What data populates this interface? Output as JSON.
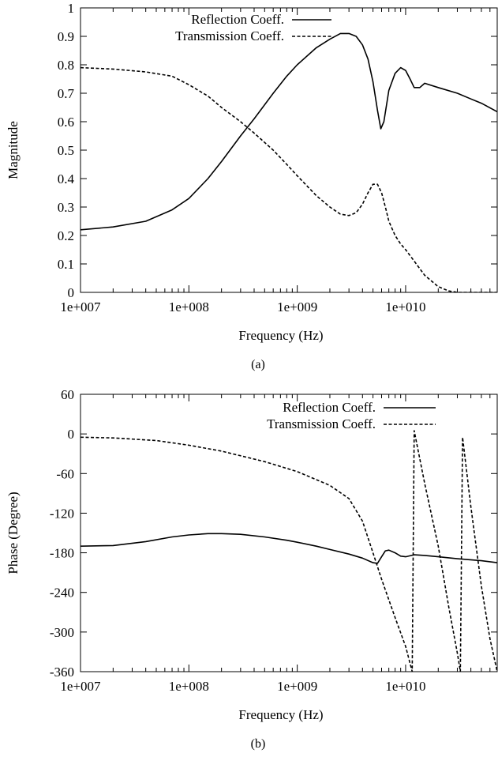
{
  "chart_data": [
    {
      "type": "line",
      "caption": "(a)",
      "xlabel": "Frequency (Hz)",
      "ylabel": "Magnitude",
      "xscale": "log",
      "xlim": [
        10000000.0,
        70000000000.0
      ],
      "ylim": [
        0,
        1
      ],
      "x_ticks": [
        10000000.0,
        100000000.0,
        1000000000.0,
        10000000000.0
      ],
      "x_tick_labels": [
        "1e+007",
        "1e+008",
        "1e+009",
        "1e+010"
      ],
      "y_ticks": [
        0,
        0.1,
        0.2,
        0.3,
        0.4,
        0.5,
        0.6,
        0.7,
        0.8,
        0.9,
        1
      ],
      "y_tick_labels": [
        "0",
        "0.1",
        "0.2",
        "0.3",
        "0.4",
        "0.5",
        "0.6",
        "0.7",
        "0.8",
        "0.9",
        "1"
      ],
      "grid": false,
      "legend_position": "top-left",
      "series": [
        {
          "name": "Reflection Coeff.",
          "style": "solid",
          "color": "#000000",
          "x": [
            10000000.0,
            20000000.0,
            40000000.0,
            70000000.0,
            100000000.0,
            150000000.0,
            200000000.0,
            300000000.0,
            400000000.0,
            600000000.0,
            800000000.0,
            1000000000.0,
            1500000000.0,
            2000000000.0,
            2500000000.0,
            3000000000.0,
            3500000000.0,
            4000000000.0,
            4500000000.0,
            5000000000.0,
            5500000000.0,
            5900000000.0,
            6300000000.0,
            7000000000.0,
            8000000000.0,
            9000000000.0,
            10000000000.0,
            11000000000.0,
            12000000000.0,
            13500000000.0,
            15000000000.0,
            20000000000.0,
            30000000000.0,
            40000000000.0,
            50000000000.0,
            70000000000.0
          ],
          "y": [
            0.22,
            0.23,
            0.25,
            0.29,
            0.33,
            0.4,
            0.46,
            0.55,
            0.61,
            0.7,
            0.76,
            0.8,
            0.86,
            0.89,
            0.91,
            0.91,
            0.9,
            0.87,
            0.82,
            0.74,
            0.64,
            0.575,
            0.6,
            0.71,
            0.77,
            0.79,
            0.78,
            0.75,
            0.72,
            0.72,
            0.735,
            0.72,
            0.7,
            0.68,
            0.665,
            0.635
          ]
        },
        {
          "name": "Transmission Coeff.",
          "style": "dashed",
          "color": "#000000",
          "x": [
            10000000.0,
            20000000.0,
            40000000.0,
            70000000.0,
            100000000.0,
            150000000.0,
            200000000.0,
            300000000.0,
            400000000.0,
            600000000.0,
            800000000.0,
            1000000000.0,
            1500000000.0,
            2000000000.0,
            2500000000.0,
            3000000000.0,
            3500000000.0,
            4000000000.0,
            4500000000.0,
            5000000000.0,
            5500000000.0,
            6000000000.0,
            6500000000.0,
            7000000000.0,
            8000000000.0,
            9000000000.0,
            10000000000.0,
            12000000000.0,
            15000000000.0,
            20000000000.0,
            25000000000.0,
            30000000000.0,
            40000000000.0,
            70000000000.0
          ],
          "y": [
            0.79,
            0.785,
            0.775,
            0.76,
            0.73,
            0.69,
            0.65,
            0.6,
            0.56,
            0.5,
            0.45,
            0.41,
            0.34,
            0.3,
            0.275,
            0.27,
            0.28,
            0.31,
            0.35,
            0.38,
            0.38,
            0.35,
            0.3,
            0.25,
            0.2,
            0.17,
            0.15,
            0.11,
            0.06,
            0.02,
            0.005,
            0.0,
            0.0,
            0.0
          ]
        }
      ]
    },
    {
      "type": "line",
      "caption": "(b)",
      "xlabel": "Frequency (Hz)",
      "ylabel": "Phase (Degree)",
      "xscale": "log",
      "xlim": [
        10000000.0,
        70000000000.0
      ],
      "ylim": [
        -360,
        60
      ],
      "x_ticks": [
        10000000.0,
        100000000.0,
        1000000000.0,
        10000000000.0
      ],
      "x_tick_labels": [
        "1e+007",
        "1e+008",
        "1e+009",
        "1e+010"
      ],
      "y_ticks": [
        60,
        0,
        -60,
        -120,
        -180,
        -240,
        -300,
        -360
      ],
      "y_tick_labels": [
        "60",
        "0",
        "-60",
        "-120",
        "-180",
        "-240",
        "-300",
        "-360"
      ],
      "grid": false,
      "legend_position": "top-right",
      "series": [
        {
          "name": "Reflection Coeff.",
          "style": "solid",
          "color": "#000000",
          "x": [
            10000000.0,
            20000000.0,
            40000000.0,
            70000000.0,
            100000000.0,
            150000000.0,
            200000000.0,
            300000000.0,
            500000000.0,
            800000000.0,
            1000000000.0,
            1500000000.0,
            2000000000.0,
            3000000000.0,
            4000000000.0,
            5000000000.0,
            5500000000.0,
            6000000000.0,
            6500000000.0,
            7000000000.0,
            8000000000.0,
            9000000000.0,
            10000000000.0,
            12000000000.0,
            15000000000.0,
            20000000000.0,
            30000000000.0,
            50000000000.0,
            70000000000.0
          ],
          "y": [
            -170,
            -169,
            -163,
            -156,
            -153,
            -151,
            -151,
            -152,
            -156,
            -161,
            -164,
            -170,
            -175,
            -182,
            -188,
            -195,
            -196,
            -186,
            -177,
            -176,
            -180,
            -185,
            -186,
            -183,
            -184,
            -186,
            -189,
            -192,
            -195
          ]
        },
        {
          "name": "Transmission Coeff.",
          "style": "dashed",
          "color": "#000000",
          "x": [
            10000000.0,
            20000000.0,
            50000000.0,
            100000000.0,
            200000000.0,
            500000000.0,
            1000000000.0,
            2000000000.0,
            3000000000.0,
            4000000000.0,
            5000000000.0,
            6000000000.0,
            8000000000.0,
            10000000000.0,
            11500000000.0,
            12000000000.0,
            15000000000.0,
            20000000000.0,
            25000000000.0,
            30000000000.0,
            32000000000.0,
            33500000000.0,
            40000000000.0,
            50000000000.0,
            60000000000.0,
            70000000000.0
          ],
          "y": [
            -5,
            -6,
            -10,
            -17,
            -26,
            -42,
            -57,
            -78,
            -98,
            -132,
            -180,
            -220,
            -278,
            -322,
            -360,
            5,
            -75,
            -170,
            -262,
            -332,
            -360,
            -5,
            -110,
            -230,
            -310,
            -360
          ]
        }
      ]
    }
  ]
}
